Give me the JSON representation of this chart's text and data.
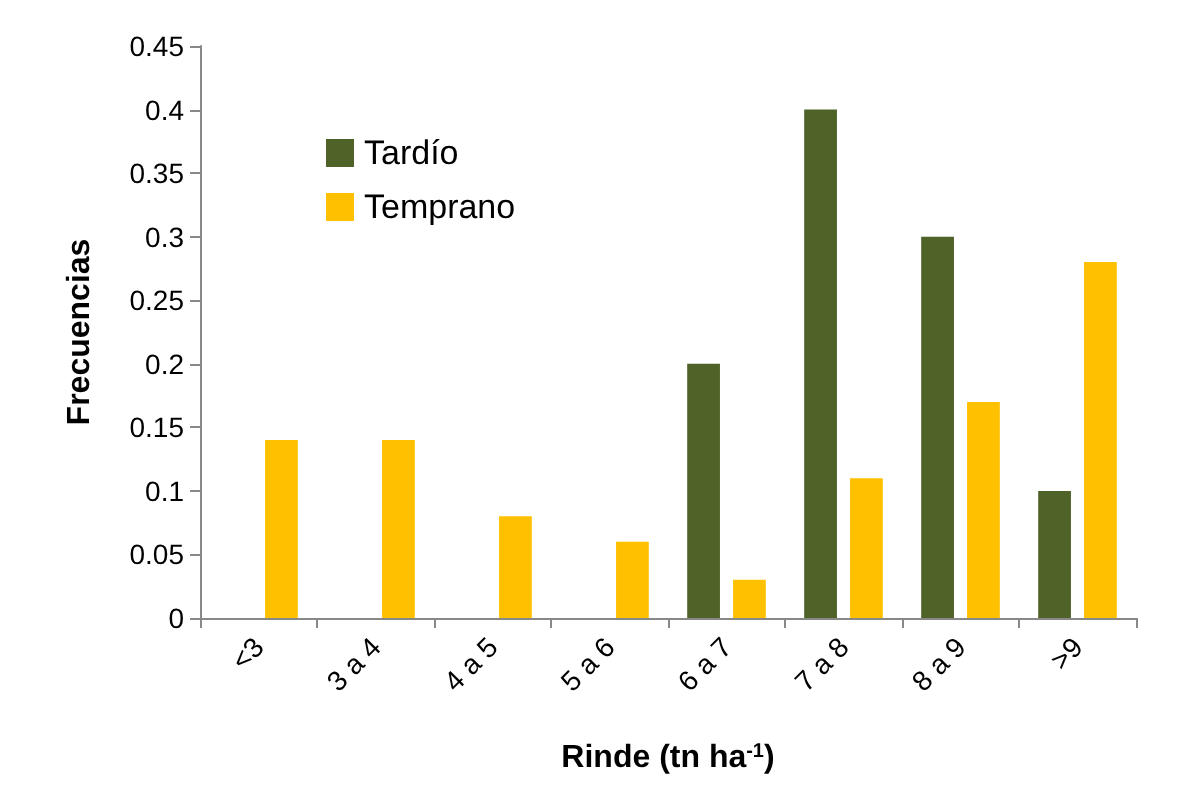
{
  "chart_data": {
    "type": "bar",
    "xlabel": "Rinde (tn ha$^{-1}$)",
    "ylabel": "Frecuencias",
    "categories": [
      "<3",
      "3 a 4",
      "4 a 5",
      "5 a 6",
      "6 a 7",
      "7 a 8",
      "8 a 9",
      ">9"
    ],
    "series": [
      {
        "name": "Tardío",
        "color": "#4f6228",
        "values": [
          0,
          0,
          0,
          0,
          0.2,
          0.4,
          0.3,
          0.1
        ]
      },
      {
        "name": "Temprano",
        "color": "#ffc000",
        "values": [
          0.14,
          0.14,
          0.08,
          0.06,
          0.03,
          0.11,
          0.17,
          0.28
        ]
      }
    ],
    "ylim": [
      0,
      0.45
    ],
    "yticks": [
      0,
      0.05,
      0.1,
      0.15,
      0.2,
      0.25,
      0.3,
      0.35,
      0.4,
      0.45
    ],
    "grid": false,
    "legend": "top left"
  }
}
